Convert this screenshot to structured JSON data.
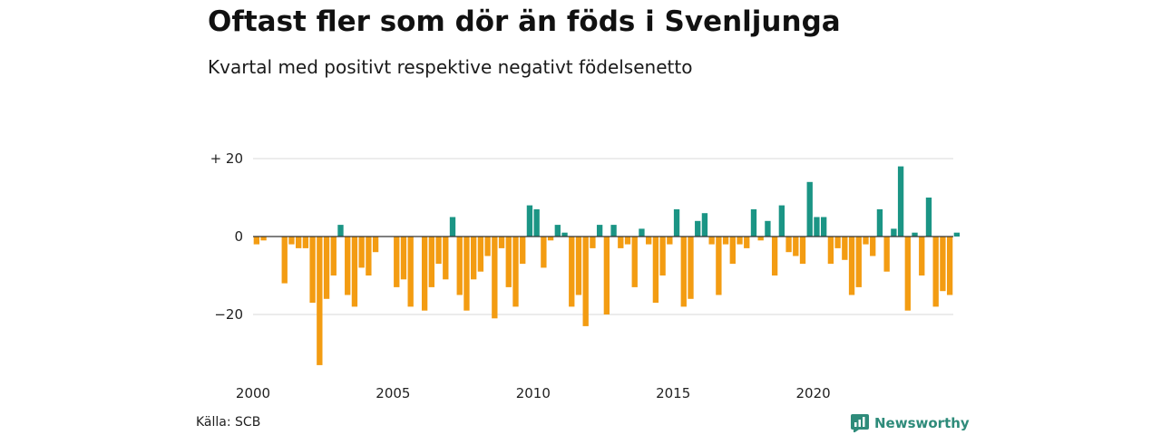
{
  "header": {
    "title": "Oftast fler som dör än föds i Svenljunga",
    "subtitle": "Kvartal med positivt respektive negativt födelsenetto"
  },
  "footer": {
    "source": "Källa: SCB",
    "brand": "Newsworthy"
  },
  "colors": {
    "positive": "#1b9585",
    "negative": "#f39c12",
    "brand": "#2e8b7a"
  },
  "chart_data": {
    "type": "bar",
    "x_start": 2000,
    "x_end": 2025,
    "periods_per_year": 4,
    "ylim": [
      -35,
      22
    ],
    "yticks": [
      20,
      0,
      -20
    ],
    "ytick_labels": [
      "+ 20",
      "0",
      "−20"
    ],
    "xtick_labels": [
      "2000",
      "2005",
      "2010",
      "2015",
      "2020"
    ],
    "grid": true,
    "values": [
      -2,
      -1,
      0,
      0,
      -12,
      -2,
      -3,
      -3,
      -17,
      -33,
      -16,
      -10,
      3,
      -15,
      -18,
      -8,
      -10,
      -4,
      0,
      0,
      -13,
      -11,
      -18,
      0,
      -19,
      -13,
      -7,
      -11,
      5,
      -15,
      -19,
      -11,
      -9,
      -5,
      -21,
      -3,
      -13,
      -18,
      -7,
      8,
      7,
      -8,
      -1,
      3,
      1,
      -18,
      -15,
      -23,
      -3,
      3,
      -20,
      3,
      -3,
      -2,
      -13,
      2,
      -2,
      -17,
      -10,
      -2,
      7,
      -18,
      -16,
      4,
      6,
      -2,
      -15,
      -2,
      -7,
      -2,
      -3,
      7,
      -1,
      4,
      -10,
      8,
      -4,
      -5,
      -7,
      14,
      5,
      5,
      -7,
      -3,
      -6,
      -15,
      -13,
      -2,
      -5,
      7,
      -9,
      2,
      18,
      -19,
      1,
      -10,
      10,
      -18,
      -14,
      -15,
      1
    ]
  }
}
